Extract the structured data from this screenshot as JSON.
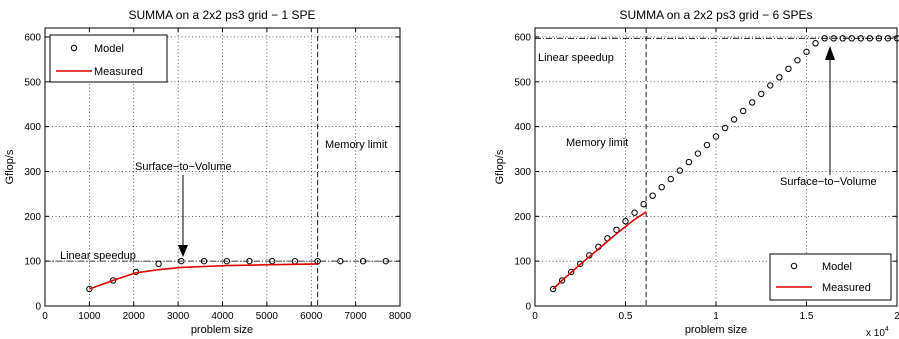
{
  "chart_data": [
    {
      "type": "line",
      "title": "SUMMA on a 2x2 ps3 grid − 1 SPE",
      "xlabel": "problem size",
      "ylabel": "Gflop/s",
      "xlim": [
        0,
        8000
      ],
      "ylim": [
        0,
        620
      ],
      "xticks": [
        "0",
        "1000",
        "2000",
        "3000",
        "4000",
        "5000",
        "6000",
        "7000",
        "8000"
      ],
      "yticks": [
        "0",
        "100",
        "200",
        "300",
        "400",
        "500",
        "600"
      ],
      "grid": true,
      "legend": "top-left",
      "series": [
        {
          "name": "Model",
          "style": "circles",
          "color": "#000000",
          "x": [
            1000,
            1536,
            2048,
            2560,
            3072,
            3584,
            4096,
            4608,
            5120,
            5632,
            6144,
            6656,
            7168,
            7680
          ],
          "y": [
            38,
            57,
            76,
            94,
            100,
            100,
            100,
            100,
            100,
            100,
            100,
            100,
            100,
            100
          ]
        },
        {
          "name": "Measured",
          "style": "line",
          "color": "#e00000",
          "x": [
            1000,
            1536,
            2048,
            2560,
            3072,
            3584,
            4096,
            4608,
            5120,
            5632,
            6144
          ],
          "y": [
            38,
            57,
            74,
            81,
            86,
            88,
            90,
            91,
            92,
            93,
            94
          ]
        }
      ],
      "reference_lines": {
        "horizontal_y": 100,
        "vertical_x": 6144
      },
      "annotations": {
        "linear_speedup": "Linear speedup",
        "memory_limit": "Memory limit",
        "surface_to_volume": "Surface−to−Volume"
      }
    },
    {
      "type": "line",
      "title": "SUMMA on a 2x2 ps3 grid − 6 SPEs",
      "xlabel": "problem size",
      "ylabel": "Gflop/s",
      "x_multiplier": "x 10",
      "x_multiplier_exp": "4",
      "xlim": [
        0,
        2
      ],
      "ylim": [
        0,
        620
      ],
      "xticks": [
        "0",
        "0.5",
        "1",
        "1.5",
        "2"
      ],
      "yticks": [
        "0",
        "100",
        "200",
        "300",
        "400",
        "500",
        "600"
      ],
      "grid": true,
      "legend": "bottom-right",
      "series": [
        {
          "name": "Model",
          "style": "circles",
          "color": "#000000",
          "x": [
            0.1,
            0.15,
            0.2,
            0.25,
            0.3,
            0.35,
            0.4,
            0.45,
            0.5,
            0.55,
            0.6,
            0.65,
            0.7,
            0.75,
            0.8,
            0.85,
            0.9,
            0.95,
            1.0,
            1.05,
            1.1,
            1.15,
            1.2,
            1.25,
            1.3,
            1.35,
            1.4,
            1.45,
            1.5,
            1.55,
            1.6,
            1.65,
            1.7,
            1.75,
            1.8,
            1.85,
            1.9,
            1.95,
            2.0
          ],
          "y": [
            38,
            57,
            76,
            94,
            113,
            132,
            151,
            170,
            189,
            208,
            227,
            246,
            265,
            283,
            302,
            321,
            340,
            359,
            378,
            397,
            416,
            435,
            454,
            473,
            492,
            510,
            529,
            548,
            567,
            586,
            597,
            597,
            597,
            597,
            597,
            597,
            597,
            597,
            597
          ]
        },
        {
          "name": "Measured",
          "style": "line",
          "color": "#e00000",
          "x": [
            0.1,
            0.15,
            0.2,
            0.25,
            0.3,
            0.35,
            0.4,
            0.45,
            0.5,
            0.55,
            0.6,
            0.614
          ],
          "y": [
            38,
            57,
            75,
            93,
            110,
            127,
            144,
            161,
            177,
            193,
            206,
            210
          ]
        }
      ],
      "reference_lines": {
        "horizontal_y": 597,
        "vertical_x": 0.614
      },
      "annotations": {
        "linear_speedup": "Linear speedup",
        "memory_limit": "Memory limit",
        "surface_to_volume": "Surface−to−Volume"
      }
    }
  ]
}
